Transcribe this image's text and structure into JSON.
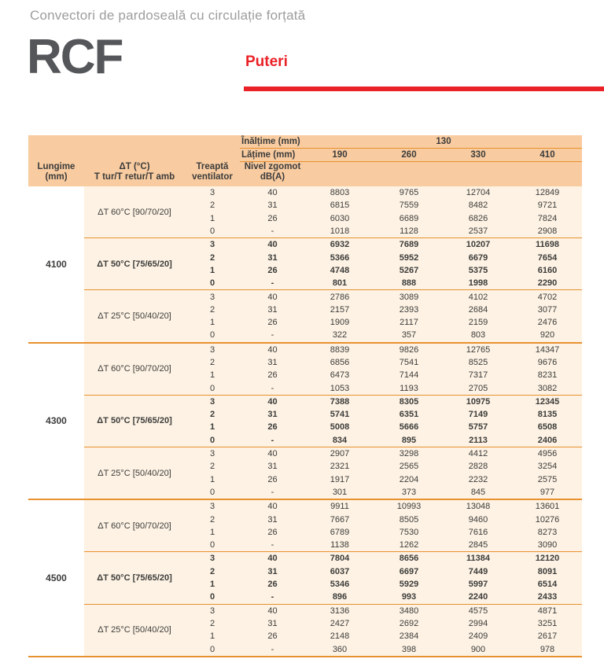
{
  "page": {
    "title": "Convectori de pardoseală cu circulație forțată",
    "product_code": "RCF",
    "section_title": "Puteri"
  },
  "colors": {
    "accent_red": "#ea2127",
    "header_peach": "#f8cba0",
    "body_cream": "#fdf2e3",
    "line_orange": "#e8912f",
    "text_dark": "#3c3c3b",
    "title_gray": "#9d9d9c",
    "logo_gray": "#54565a"
  },
  "table": {
    "header": {
      "height_label": "Înălțime (mm)",
      "height_value": "130",
      "width_label": "Lățime (mm)",
      "width_values": [
        "190",
        "260",
        "330",
        "410"
      ],
      "columns": [
        {
          "line1": "Lungime",
          "line2": "(mm)"
        },
        {
          "line1": "ΔT (°C)",
          "line2": "T tur/T retur/T amb"
        },
        {
          "line1": "Treaptă",
          "line2": "ventilator"
        },
        {
          "line1": "Nivel zgomot",
          "line2": "dB(A)"
        }
      ]
    },
    "groups": [
      {
        "lungime": "4100",
        "subgroups": [
          {
            "dt_label": "ΔT 60°C [90/70/20]",
            "bold": false,
            "rows": [
              {
                "treapta": "3",
                "nivel": "40",
                "values": [
                  "8803",
                  "9765",
                  "12704",
                  "12849"
                ]
              },
              {
                "treapta": "2",
                "nivel": "31",
                "values": [
                  "6815",
                  "7559",
                  "8482",
                  "9721"
                ]
              },
              {
                "treapta": "1",
                "nivel": "26",
                "values": [
                  "6030",
                  "6689",
                  "6826",
                  "7824"
                ]
              },
              {
                "treapta": "0",
                "nivel": "-",
                "values": [
                  "1018",
                  "1128",
                  "2537",
                  "2908"
                ]
              }
            ]
          },
          {
            "dt_label": "ΔT 50°C [75/65/20]",
            "bold": true,
            "rows": [
              {
                "treapta": "3",
                "nivel": "40",
                "values": [
                  "6932",
                  "7689",
                  "10207",
                  "11698"
                ]
              },
              {
                "treapta": "2",
                "nivel": "31",
                "values": [
                  "5366",
                  "5952",
                  "6679",
                  "7654"
                ]
              },
              {
                "treapta": "1",
                "nivel": "26",
                "values": [
                  "4748",
                  "5267",
                  "5375",
                  "6160"
                ]
              },
              {
                "treapta": "0",
                "nivel": "-",
                "values": [
                  "801",
                  "888",
                  "1998",
                  "2290"
                ]
              }
            ]
          },
          {
            "dt_label": "ΔT 25°C [50/40/20]",
            "bold": false,
            "rows": [
              {
                "treapta": "3",
                "nivel": "40",
                "values": [
                  "2786",
                  "3089",
                  "4102",
                  "4702"
                ]
              },
              {
                "treapta": "2",
                "nivel": "31",
                "values": [
                  "2157",
                  "2393",
                  "2684",
                  "3077"
                ]
              },
              {
                "treapta": "1",
                "nivel": "26",
                "values": [
                  "1909",
                  "2117",
                  "2159",
                  "2476"
                ]
              },
              {
                "treapta": "0",
                "nivel": "-",
                "values": [
                  "322",
                  "357",
                  "803",
                  "920"
                ]
              }
            ]
          }
        ]
      },
      {
        "lungime": "4300",
        "subgroups": [
          {
            "dt_label": "ΔT 60°C [90/70/20]",
            "bold": false,
            "rows": [
              {
                "treapta": "3",
                "nivel": "40",
                "values": [
                  "8839",
                  "9826",
                  "12765",
                  "14347"
                ]
              },
              {
                "treapta": "2",
                "nivel": "31",
                "values": [
                  "6856",
                  "7541",
                  "8525",
                  "9676"
                ]
              },
              {
                "treapta": "1",
                "nivel": "26",
                "values": [
                  "6473",
                  "7144",
                  "7317",
                  "8231"
                ]
              },
              {
                "treapta": "0",
                "nivel": "-",
                "values": [
                  "1053",
                  "1193",
                  "2705",
                  "3082"
                ]
              }
            ]
          },
          {
            "dt_label": "ΔT 50°C [75/65/20]",
            "bold": true,
            "rows": [
              {
                "treapta": "3",
                "nivel": "40",
                "values": [
                  "7388",
                  "8305",
                  "10975",
                  "12345"
                ]
              },
              {
                "treapta": "2",
                "nivel": "31",
                "values": [
                  "5741",
                  "6351",
                  "7149",
                  "8135"
                ]
              },
              {
                "treapta": "1",
                "nivel": "26",
                "values": [
                  "5008",
                  "5666",
                  "5757",
                  "6508"
                ]
              },
              {
                "treapta": "0",
                "nivel": "-",
                "values": [
                  "834",
                  "895",
                  "2113",
                  "2406"
                ]
              }
            ]
          },
          {
            "dt_label": "ΔT 25°C [50/40/20]",
            "bold": false,
            "rows": [
              {
                "treapta": "3",
                "nivel": "40",
                "values": [
                  "2907",
                  "3298",
                  "4412",
                  "4956"
                ]
              },
              {
                "treapta": "2",
                "nivel": "31",
                "values": [
                  "2321",
                  "2565",
                  "2828",
                  "3254"
                ]
              },
              {
                "treapta": "1",
                "nivel": "26",
                "values": [
                  "1917",
                  "2204",
                  "2232",
                  "2575"
                ]
              },
              {
                "treapta": "0",
                "nivel": "-",
                "values": [
                  "301",
                  "373",
                  "845",
                  "977"
                ]
              }
            ]
          }
        ]
      },
      {
        "lungime": "4500",
        "subgroups": [
          {
            "dt_label": "ΔT 60°C [90/70/20]",
            "bold": false,
            "rows": [
              {
                "treapta": "3",
                "nivel": "40",
                "values": [
                  "9911",
                  "10993",
                  "13048",
                  "13601"
                ]
              },
              {
                "treapta": "2",
                "nivel": "31",
                "values": [
                  "7667",
                  "8505",
                  "9460",
                  "10276"
                ]
              },
              {
                "treapta": "1",
                "nivel": "26",
                "values": [
                  "6789",
                  "7530",
                  "7616",
                  "8273"
                ]
              },
              {
                "treapta": "0",
                "nivel": "-",
                "values": [
                  "1138",
                  "1262",
                  "2845",
                  "3090"
                ]
              }
            ]
          },
          {
            "dt_label": "ΔT 50°C [75/65/20]",
            "bold": true,
            "rows": [
              {
                "treapta": "3",
                "nivel": "40",
                "values": [
                  "7804",
                  "8656",
                  "11384",
                  "12120"
                ]
              },
              {
                "treapta": "2",
                "nivel": "31",
                "values": [
                  "6037",
                  "6697",
                  "7449",
                  "8091"
                ]
              },
              {
                "treapta": "1",
                "nivel": "26",
                "values": [
                  "5346",
                  "5929",
                  "5997",
                  "6514"
                ]
              },
              {
                "treapta": "0",
                "nivel": "-",
                "values": [
                  "896",
                  "993",
                  "2240",
                  "2433"
                ]
              }
            ]
          },
          {
            "dt_label": "ΔT 25°C [50/40/20]",
            "bold": false,
            "rows": [
              {
                "treapta": "3",
                "nivel": "40",
                "values": [
                  "3136",
                  "3480",
                  "4575",
                  "4871"
                ]
              },
              {
                "treapta": "2",
                "nivel": "31",
                "values": [
                  "2427",
                  "2692",
                  "2994",
                  "3251"
                ]
              },
              {
                "treapta": "1",
                "nivel": "26",
                "values": [
                  "2148",
                  "2384",
                  "2409",
                  "2617"
                ]
              },
              {
                "treapta": "0",
                "nivel": "-",
                "values": [
                  "360",
                  "398",
                  "900",
                  "978"
                ]
              }
            ]
          }
        ]
      }
    ]
  }
}
